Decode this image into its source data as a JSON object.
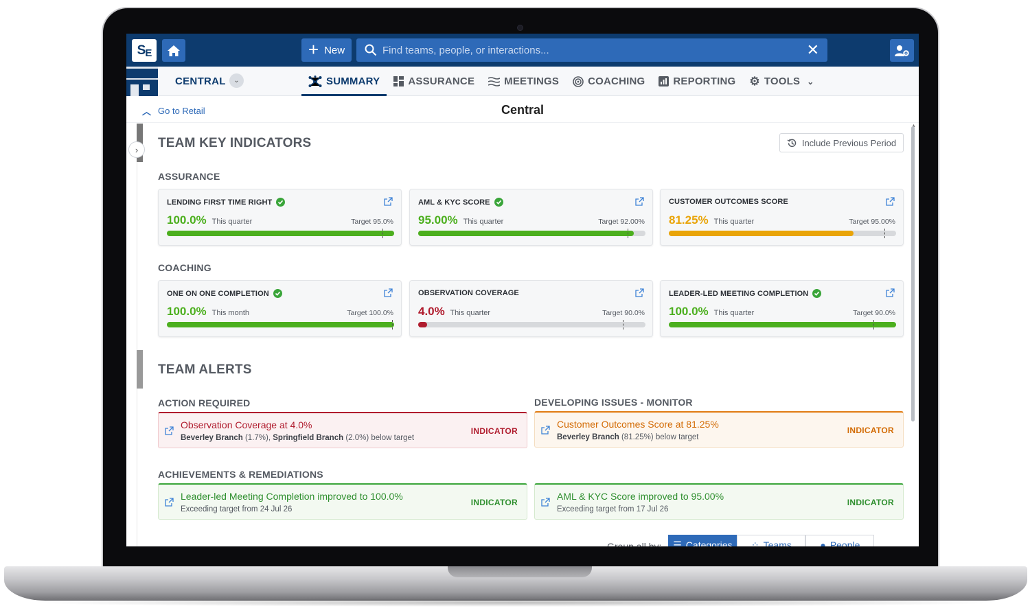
{
  "app": {
    "logo_text": "SE",
    "new_label": "New",
    "search_placeholder": "Find teams, people, or interactions..."
  },
  "nav": {
    "team_name": "CENTRAL",
    "tabs": [
      {
        "label": "SUMMARY",
        "icon": "hub-icon",
        "active": true
      },
      {
        "label": "ASSURANCE",
        "icon": "dashboard-icon",
        "active": false
      },
      {
        "label": "MEETINGS",
        "icon": "waves-icon",
        "active": false
      },
      {
        "label": "COACHING",
        "icon": "target-icon",
        "active": false
      },
      {
        "label": "REPORTING",
        "icon": "report-icon",
        "active": false
      },
      {
        "label": "TOOLS",
        "icon": "gear-icon",
        "active": false
      }
    ]
  },
  "breadcrumb": {
    "back_label": "Go to Retail",
    "page_title": "Central"
  },
  "indicators": {
    "section_title": "TEAM KEY INDICATORS",
    "include_previous_label": "Include Previous Period",
    "assurance": {
      "title": "ASSURANCE",
      "cards": [
        {
          "title": "LENDING FIRST TIME RIGHT",
          "met": true,
          "value": "100.0%",
          "period": "This quarter",
          "target": "Target 95.0%",
          "progress": 1.0,
          "target_pos": 0.95,
          "color": "#4caf1e"
        },
        {
          "title": "AML & KYC SCORE",
          "met": true,
          "value": "95.00%",
          "period": "This quarter",
          "target": "Target 92.00%",
          "progress": 0.95,
          "target_pos": 0.92,
          "color": "#4caf1e"
        },
        {
          "title": "CUSTOMER OUTCOMES SCORE",
          "met": false,
          "value": "81.25%",
          "period": "This quarter",
          "target": "Target 95.00%",
          "progress": 0.8125,
          "target_pos": 0.95,
          "color": "#e9a408"
        }
      ]
    },
    "coaching": {
      "title": "COACHING",
      "cards": [
        {
          "title": "ONE ON ONE COMPLETION",
          "met": true,
          "value": "100.0%",
          "period": "This month",
          "target": "Target 100.0%",
          "progress": 1.0,
          "target_pos": 1.0,
          "color": "#4caf1e"
        },
        {
          "title": "OBSERVATION COVERAGE",
          "met": false,
          "value": "4.0%",
          "period": "This quarter",
          "target": "Target 90.0%",
          "progress": 0.04,
          "target_pos": 0.9,
          "color": "#b01c2e"
        },
        {
          "title": "LEADER-LED MEETING COMPLETION",
          "met": true,
          "value": "100.0%",
          "period": "This quarter",
          "target": "Target 90.0%",
          "progress": 1.0,
          "target_pos": 0.9,
          "color": "#4caf1e"
        }
      ]
    }
  },
  "alerts": {
    "section_title": "TEAM ALERTS",
    "action_required": {
      "title": "ACTION REQUIRED",
      "items": [
        {
          "title": "Observation Coverage at 4.0%",
          "sub_parts": [
            [
              "Beverley Branch",
              true
            ],
            [
              " (1.7%), ",
              false
            ],
            [
              "Springfield Branch",
              true
            ],
            [
              " (2.0%) below target",
              false
            ]
          ],
          "tag": "INDICATOR"
        }
      ]
    },
    "developing": {
      "title": "DEVELOPING ISSUES - MONITOR",
      "items": [
        {
          "title": "Customer Outcomes Score at 81.25%",
          "sub_parts": [
            [
              "Beverley Branch",
              true
            ],
            [
              " (81.25%) below target",
              false
            ]
          ],
          "tag": "INDICATOR"
        }
      ]
    },
    "achievements": {
      "title": "ACHIEVEMENTS & REMEDIATIONS",
      "items": [
        {
          "title": "Leader-led Meeting Completion improved to 100.0%",
          "sub": "Exceeding target from 24 Jul 26",
          "tag": "INDICATOR"
        },
        {
          "title": "AML & KYC Score improved to 95.00%",
          "sub": "Exceeding target from 17 Jul 26",
          "tag": "INDICATOR"
        }
      ]
    }
  },
  "grouping": {
    "label": "Group all by:",
    "options": [
      {
        "label": "Categories",
        "active": true
      },
      {
        "label": "Teams",
        "active": false
      },
      {
        "label": "People",
        "active": false
      }
    ]
  }
}
